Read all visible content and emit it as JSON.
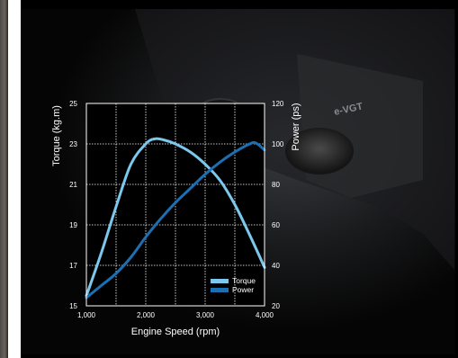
{
  "chart_data": {
    "type": "line",
    "xlabel": "Engine Speed (rpm)",
    "ylabel_left": "Torque (kg.m)",
    "ylabel_right": "Power (ps)",
    "xlim": [
      1000,
      4000
    ],
    "ylim_left": [
      15,
      25
    ],
    "ylim_right": [
      20,
      120
    ],
    "x_ticks": [
      1000,
      2000,
      3000,
      4000
    ],
    "x_tick_labels": [
      "1,000",
      "2,000",
      "3,000",
      "4,000"
    ],
    "y_left_ticks": [
      15,
      17,
      19,
      21,
      23,
      25
    ],
    "y_left_tick_labels": [
      "15",
      "17",
      "19",
      "21",
      "23",
      "25"
    ],
    "y_right_ticks": [
      20,
      40,
      60,
      80,
      100,
      120
    ],
    "y_right_tick_labels": [
      "20",
      "40",
      "60",
      "80",
      "100",
      "120"
    ],
    "grid": true,
    "legend_position": "bottom-right",
    "series": [
      {
        "name": "Torque",
        "axis": "left",
        "color": "#7cc8ec",
        "x": [
          1000,
          1250,
          1500,
          1750,
          2000,
          2150,
          2300,
          2500,
          2750,
          3000,
          3250,
          3500,
          3750,
          4000
        ],
        "y": [
          15.5,
          17.6,
          19.9,
          22.0,
          23.0,
          23.25,
          23.2,
          23.0,
          22.6,
          22.0,
          21.2,
          20.0,
          18.5,
          16.9
        ]
      },
      {
        "name": "Power",
        "axis": "right",
        "color": "#1b6fb3",
        "x": [
          1000,
          1250,
          1500,
          1750,
          2000,
          2250,
          2500,
          2750,
          3000,
          3250,
          3500,
          3750,
          3850,
          4000
        ],
        "y": [
          24,
          30,
          36,
          44,
          54,
          63,
          71,
          78,
          85,
          91,
          96,
          100,
          100.5,
          97
        ]
      }
    ]
  },
  "colors": {
    "background": "#000000",
    "plot_face": "#000000",
    "grid": "#ffffff",
    "text": "#ffffff"
  }
}
